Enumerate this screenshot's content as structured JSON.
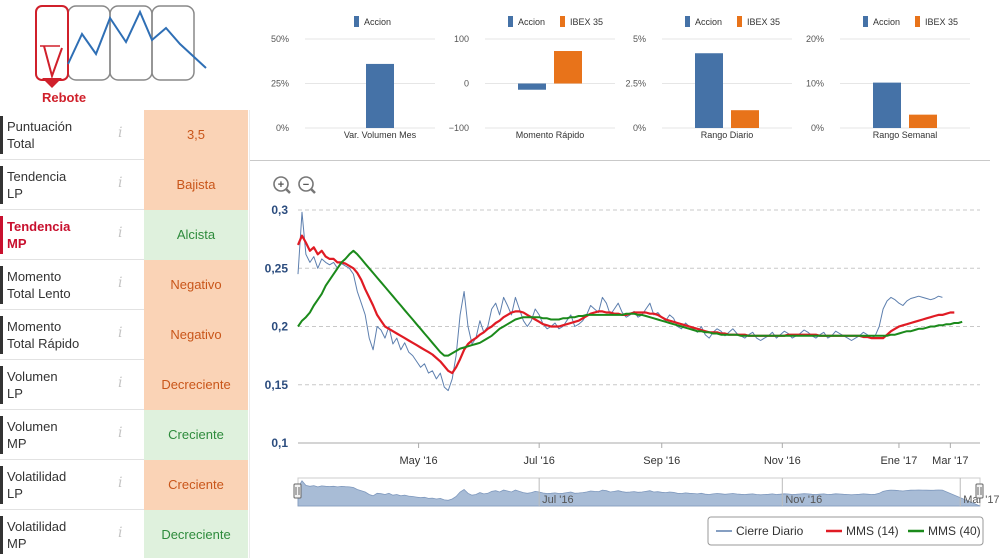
{
  "pattern": {
    "label": "Rebote",
    "icon": "rebound-pattern-icon"
  },
  "indicators": [
    {
      "name": "Puntuación\nTotal",
      "value": "3,5",
      "status": "bad",
      "active": false
    },
    {
      "name": "Tendencia\nLP",
      "value": "Bajista",
      "status": "bad",
      "active": false
    },
    {
      "name": "Tendencia\nMP",
      "value": "Alcista",
      "status": "good",
      "active": true
    },
    {
      "name": "Momento\nTotal Lento",
      "value": "Negativo",
      "status": "bad",
      "active": false
    },
    {
      "name": "Momento\nTotal Rápido",
      "value": "Negativo",
      "status": "bad",
      "active": false
    },
    {
      "name": "Volumen\nLP",
      "value": "Decreciente",
      "status": "bad",
      "active": false
    },
    {
      "name": "Volumen\nMP",
      "value": "Creciente",
      "status": "good",
      "active": false
    },
    {
      "name": "Volatilidad\nLP",
      "value": "Creciente",
      "status": "bad",
      "active": false
    },
    {
      "name": "Volatilidad\nMP",
      "value": "Decreciente",
      "status": "good",
      "active": false
    }
  ],
  "info_glyph": "i",
  "zoom": {
    "in_icon": "zoom-in-icon",
    "out_icon": "zoom-out-icon",
    "in_symbol": "+",
    "out_symbol": "−"
  },
  "colors": {
    "accion": "#4572a7",
    "ibex": "#e8731a",
    "daily": "#5d7fae",
    "mms14": "#e01b24",
    "mms40": "#1b8a1b",
    "navigator": "#a8bcd6"
  },
  "chart_data": [
    {
      "type": "bar",
      "title": "Var. Volumen Mes",
      "legend": [
        "Accion"
      ],
      "categories": [
        "Var. Volumen Mes"
      ],
      "series": [
        {
          "name": "Accion",
          "values": [
            36
          ]
        }
      ],
      "ylim": [
        0,
        50
      ],
      "yticks": [
        0,
        25,
        50
      ],
      "ytick_labels": [
        "0%",
        "25%",
        "50%"
      ]
    },
    {
      "type": "bar",
      "title": "Momento Rápido",
      "legend": [
        "Accion",
        "IBEX 35"
      ],
      "categories": [
        "Momento Rápido"
      ],
      "series": [
        {
          "name": "Accion",
          "values": [
            -14
          ]
        },
        {
          "name": "IBEX 35",
          "values": [
            73
          ]
        }
      ],
      "ylim": [
        -100,
        100
      ],
      "yticks": [
        -100,
        0,
        100
      ],
      "ytick_labels": [
        "−100",
        "0",
        "100"
      ]
    },
    {
      "type": "bar",
      "title": "Rango Diario",
      "legend": [
        "Accion",
        "IBEX 35"
      ],
      "categories": [
        "Rango Diario"
      ],
      "series": [
        {
          "name": "Accion",
          "values": [
            4.2
          ]
        },
        {
          "name": "IBEX 35",
          "values": [
            1.0
          ]
        }
      ],
      "ylim": [
        0,
        5
      ],
      "yticks": [
        0,
        2.5,
        5
      ],
      "ytick_labels": [
        "0%",
        "2.5%",
        "5%"
      ]
    },
    {
      "type": "bar",
      "title": "Rango Semanal",
      "legend": [
        "Accion",
        "IBEX 35"
      ],
      "categories": [
        "Rango Semanal"
      ],
      "series": [
        {
          "name": "Accion",
          "values": [
            10.2
          ]
        },
        {
          "name": "IBEX 35",
          "values": [
            3.0
          ]
        }
      ],
      "ylim": [
        0,
        20
      ],
      "yticks": [
        0,
        10,
        20
      ],
      "ytick_labels": [
        "0%",
        "10%",
        "20%"
      ]
    },
    {
      "type": "line",
      "title": "",
      "ylim": [
        0.1,
        0.3
      ],
      "yticks": [
        0.1,
        0.15,
        0.2,
        0.25,
        0.3
      ],
      "ytick_labels": [
        "0,1",
        "0,15",
        "0,2",
        "0,25",
        "0,3"
      ],
      "xlim_days": [
        0,
        345
      ],
      "xticks_days": [
        61,
        122,
        184,
        245,
        304,
        363
      ],
      "xtick_labels": [
        "May '16",
        "Jul '16",
        "Sep '16",
        "Nov '16",
        "Ene '17",
        "Mar '17"
      ],
      "navigator_labels": [
        "Jul '16",
        "Nov '16",
        "Mar '17"
      ],
      "navigator_label_days": [
        122,
        245,
        363
      ],
      "legend": [
        "Cierre Diario",
        "MMS (14)",
        "MMS (40)"
      ],
      "x_days": [
        0,
        2,
        4,
        6,
        8,
        10,
        12,
        14,
        16,
        18,
        20,
        22,
        24,
        26,
        28,
        30,
        32,
        34,
        36,
        38,
        40,
        42,
        44,
        46,
        48,
        50,
        52,
        54,
        56,
        58,
        60,
        62,
        64,
        66,
        68,
        70,
        72,
        74,
        76,
        78,
        80,
        82,
        84,
        86,
        88,
        90,
        92,
        94,
        96,
        98,
        100,
        102,
        104,
        106,
        108,
        110,
        112,
        114,
        116,
        118,
        120,
        122,
        124,
        126,
        128,
        130,
        132,
        134,
        136,
        138,
        140,
        142,
        144,
        146,
        148,
        150,
        152,
        154,
        156,
        158,
        160,
        162,
        164,
        166,
        168,
        170,
        172,
        174,
        176,
        178,
        180,
        182,
        184,
        186,
        188,
        190,
        192,
        194,
        196,
        198,
        200,
        202,
        204,
        206,
        208,
        210,
        212,
        214,
        216,
        218,
        220,
        222,
        224,
        226,
        228,
        230,
        232,
        234,
        236,
        238,
        240,
        242,
        244,
        246,
        248,
        250,
        252,
        254,
        256,
        258,
        260,
        262,
        264,
        266,
        268,
        270,
        272,
        274,
        276,
        278,
        280,
        282,
        284,
        286,
        288,
        290,
        292,
        294,
        296,
        298,
        300,
        302,
        304,
        306,
        308,
        310,
        312,
        314,
        316,
        318,
        320,
        322,
        324,
        326,
        328,
        330,
        332,
        334,
        336,
        338,
        340,
        342,
        344
      ],
      "series": [
        {
          "name": "Cierre Diario",
          "values": [
            0.245,
            0.298,
            0.262,
            0.255,
            0.26,
            0.25,
            0.258,
            0.255,
            0.253,
            0.255,
            0.25,
            0.254,
            0.252,
            0.25,
            0.245,
            0.23,
            0.22,
            0.21,
            0.19,
            0.18,
            0.2,
            0.197,
            0.19,
            0.2,
            0.185,
            0.19,
            0.18,
            0.186,
            0.178,
            0.175,
            0.17,
            0.165,
            0.168,
            0.16,
            0.162,
            0.155,
            0.16,
            0.148,
            0.145,
            0.155,
            0.175,
            0.21,
            0.23,
            0.2,
            0.185,
            0.19,
            0.205,
            0.195,
            0.2,
            0.215,
            0.22,
            0.21,
            0.225,
            0.218,
            0.21,
            0.225,
            0.215,
            0.205,
            0.2,
            0.205,
            0.215,
            0.21,
            0.202,
            0.198,
            0.2,
            0.203,
            0.198,
            0.2,
            0.205,
            0.21,
            0.2,
            0.202,
            0.205,
            0.21,
            0.218,
            0.215,
            0.212,
            0.225,
            0.22,
            0.21,
            0.215,
            0.22,
            0.212,
            0.208,
            0.21,
            0.213,
            0.208,
            0.21,
            0.215,
            0.22,
            0.21,
            0.212,
            0.208,
            0.205,
            0.21,
            0.207,
            0.2,
            0.198,
            0.203,
            0.2,
            0.198,
            0.195,
            0.2,
            0.193,
            0.19,
            0.195,
            0.198,
            0.196,
            0.192,
            0.195,
            0.198,
            0.194,
            0.192,
            0.19,
            0.193,
            0.195,
            0.19,
            0.188,
            0.19,
            0.192,
            0.195,
            0.19,
            0.193,
            0.196,
            0.194,
            0.19,
            0.192,
            0.194,
            0.197,
            0.195,
            0.192,
            0.19,
            0.193,
            0.195,
            0.19,
            0.192,
            0.196,
            0.194,
            0.192,
            0.19,
            0.188,
            0.19,
            0.192,
            0.195,
            0.193,
            0.19,
            0.192,
            0.2,
            0.215,
            0.222,
            0.225,
            0.223,
            0.22,
            0.218,
            0.222,
            0.224,
            0.225,
            0.226,
            0.225,
            0.224,
            0.223,
            0.224,
            0.226,
            0.225
          ]
        },
        {
          "name": "MMS (14)",
          "values": [
            0.27,
            0.278,
            0.272,
            0.265,
            0.268,
            0.262,
            0.265,
            0.26,
            0.258,
            0.258,
            0.255,
            0.255,
            0.254,
            0.252,
            0.25,
            0.246,
            0.24,
            0.232,
            0.225,
            0.218,
            0.21,
            0.205,
            0.2,
            0.198,
            0.196,
            0.194,
            0.192,
            0.19,
            0.188,
            0.186,
            0.184,
            0.182,
            0.18,
            0.178,
            0.176,
            0.173,
            0.17,
            0.166,
            0.162,
            0.16,
            0.165,
            0.172,
            0.18,
            0.185,
            0.188,
            0.19,
            0.193,
            0.195,
            0.198,
            0.2,
            0.203,
            0.205,
            0.208,
            0.21,
            0.212,
            0.213,
            0.213,
            0.212,
            0.21,
            0.208,
            0.206,
            0.204,
            0.202,
            0.201,
            0.2,
            0.2,
            0.2,
            0.201,
            0.202,
            0.203,
            0.204,
            0.205,
            0.207,
            0.209,
            0.211,
            0.212,
            0.213,
            0.213,
            0.212,
            0.212,
            0.211,
            0.211,
            0.21,
            0.21,
            0.211,
            0.212,
            0.212,
            0.212,
            0.212,
            0.211,
            0.211,
            0.21,
            0.208,
            0.206,
            0.205,
            0.204,
            0.203,
            0.202,
            0.201,
            0.2,
            0.199,
            0.198,
            0.197,
            0.196,
            0.195,
            0.195,
            0.195,
            0.194,
            0.194,
            0.193,
            0.193,
            0.193,
            0.193,
            0.193,
            0.192,
            0.192,
            0.192,
            0.192,
            0.192,
            0.192,
            0.192,
            0.192,
            0.192,
            0.192,
            0.193,
            0.193,
            0.193,
            0.193,
            0.193,
            0.193,
            0.193,
            0.193,
            0.192,
            0.192,
            0.192,
            0.192,
            0.192,
            0.192,
            0.192,
            0.192,
            0.192,
            0.192,
            0.192,
            0.191,
            0.191,
            0.19,
            0.19,
            0.19,
            0.19,
            0.193,
            0.196,
            0.198,
            0.2,
            0.201,
            0.202,
            0.203,
            0.204,
            0.205,
            0.206,
            0.207,
            0.208,
            0.209,
            0.21,
            0.21,
            0.211,
            0.212,
            0.212
          ]
        },
        {
          "name": "MMS (40)",
          "values": [
            0.2,
            0.205,
            0.208,
            0.212,
            0.218,
            0.223,
            0.228,
            0.235,
            0.24,
            0.245,
            0.25,
            0.255,
            0.258,
            0.262,
            0.265,
            0.262,
            0.258,
            0.254,
            0.25,
            0.246,
            0.242,
            0.238,
            0.234,
            0.23,
            0.226,
            0.222,
            0.218,
            0.214,
            0.21,
            0.206,
            0.202,
            0.198,
            0.194,
            0.19,
            0.186,
            0.182,
            0.178,
            0.175,
            0.175,
            0.177,
            0.179,
            0.181,
            0.182,
            0.183,
            0.184,
            0.185,
            0.186,
            0.188,
            0.19,
            0.192,
            0.195,
            0.198,
            0.2,
            0.202,
            0.204,
            0.206,
            0.207,
            0.208,
            0.208,
            0.208,
            0.208,
            0.208,
            0.207,
            0.207,
            0.206,
            0.206,
            0.206,
            0.207,
            0.207,
            0.208,
            0.208,
            0.209,
            0.209,
            0.21,
            0.21,
            0.21,
            0.21,
            0.21,
            0.21,
            0.21,
            0.21,
            0.21,
            0.21,
            0.211,
            0.211,
            0.211,
            0.21,
            0.21,
            0.209,
            0.208,
            0.207,
            0.206,
            0.205,
            0.204,
            0.203,
            0.202,
            0.201,
            0.2,
            0.199,
            0.198,
            0.197,
            0.196,
            0.196,
            0.195,
            0.195,
            0.194,
            0.194,
            0.193,
            0.193,
            0.193,
            0.193,
            0.193,
            0.192,
            0.192,
            0.192,
            0.192,
            0.192,
            0.192,
            0.192,
            0.192,
            0.192,
            0.192,
            0.192,
            0.192,
            0.192,
            0.192,
            0.192,
            0.192,
            0.192,
            0.192,
            0.192,
            0.192,
            0.192,
            0.192,
            0.192,
            0.192,
            0.192,
            0.192,
            0.192,
            0.192,
            0.192,
            0.192,
            0.192,
            0.192,
            0.192,
            0.192,
            0.192,
            0.192,
            0.192,
            0.192,
            0.193,
            0.193,
            0.194,
            0.195,
            0.196,
            0.196,
            0.197,
            0.198,
            0.198,
            0.199,
            0.2,
            0.2,
            0.201,
            0.201,
            0.202,
            0.202,
            0.203,
            0.203,
            0.204
          ]
        }
      ]
    }
  ]
}
